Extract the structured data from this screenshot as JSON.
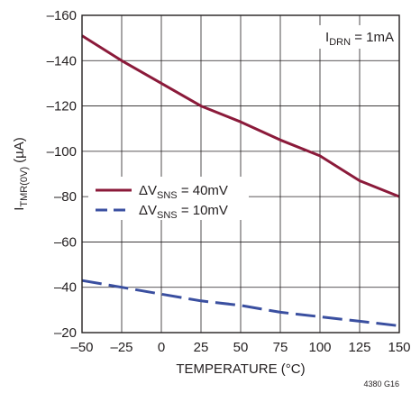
{
  "chart_data": {
    "type": "line",
    "xlabel": "TEMPERATURE (°C)",
    "ylabel": {
      "main": "I",
      "sub": "TMR(0V)",
      "unit": " (µA)"
    },
    "xlim": [
      -50,
      150
    ],
    "ylim": [
      -20,
      -160
    ],
    "x_ticks": [
      -50,
      -25,
      0,
      25,
      50,
      75,
      100,
      125,
      150
    ],
    "x_tick_labels": [
      "–50",
      "–25",
      "0",
      "25",
      "50",
      "75",
      "100",
      "125",
      "150"
    ],
    "y_ticks": [
      -20,
      -40,
      -60,
      -80,
      -100,
      -120,
      -140,
      -160
    ],
    "y_tick_labels": [
      "–20",
      "–40",
      "–60",
      "–80",
      "–100",
      "–120",
      "–140",
      "–160"
    ],
    "grid": true,
    "annotation": {
      "main": "I",
      "sub": "DRN",
      "rest": " = 1mA"
    },
    "legend_position": "center-left",
    "series": [
      {
        "legend_main": "ΔV",
        "legend_sub": "SNS",
        "legend_rest": " = 40mV",
        "color": "#8b1a3a",
        "dash": "solid",
        "x": [
          -50,
          -25,
          0,
          25,
          50,
          75,
          100,
          125,
          150
        ],
        "y": [
          -151,
          -140,
          -130,
          -120,
          -113,
          -105,
          -98,
          -87,
          -80
        ]
      },
      {
        "legend_main": "ΔV",
        "legend_sub": "SNS",
        "legend_rest": " = 10mV",
        "color": "#3a4fa0",
        "dash": "dashed",
        "x": [
          -50,
          -25,
          0,
          25,
          50,
          75,
          100,
          125,
          150
        ],
        "y": [
          -43,
          -40,
          -37,
          -34,
          -32,
          -29,
          -27,
          -25,
          -23
        ]
      }
    ],
    "figure_code": "4380 G16"
  }
}
